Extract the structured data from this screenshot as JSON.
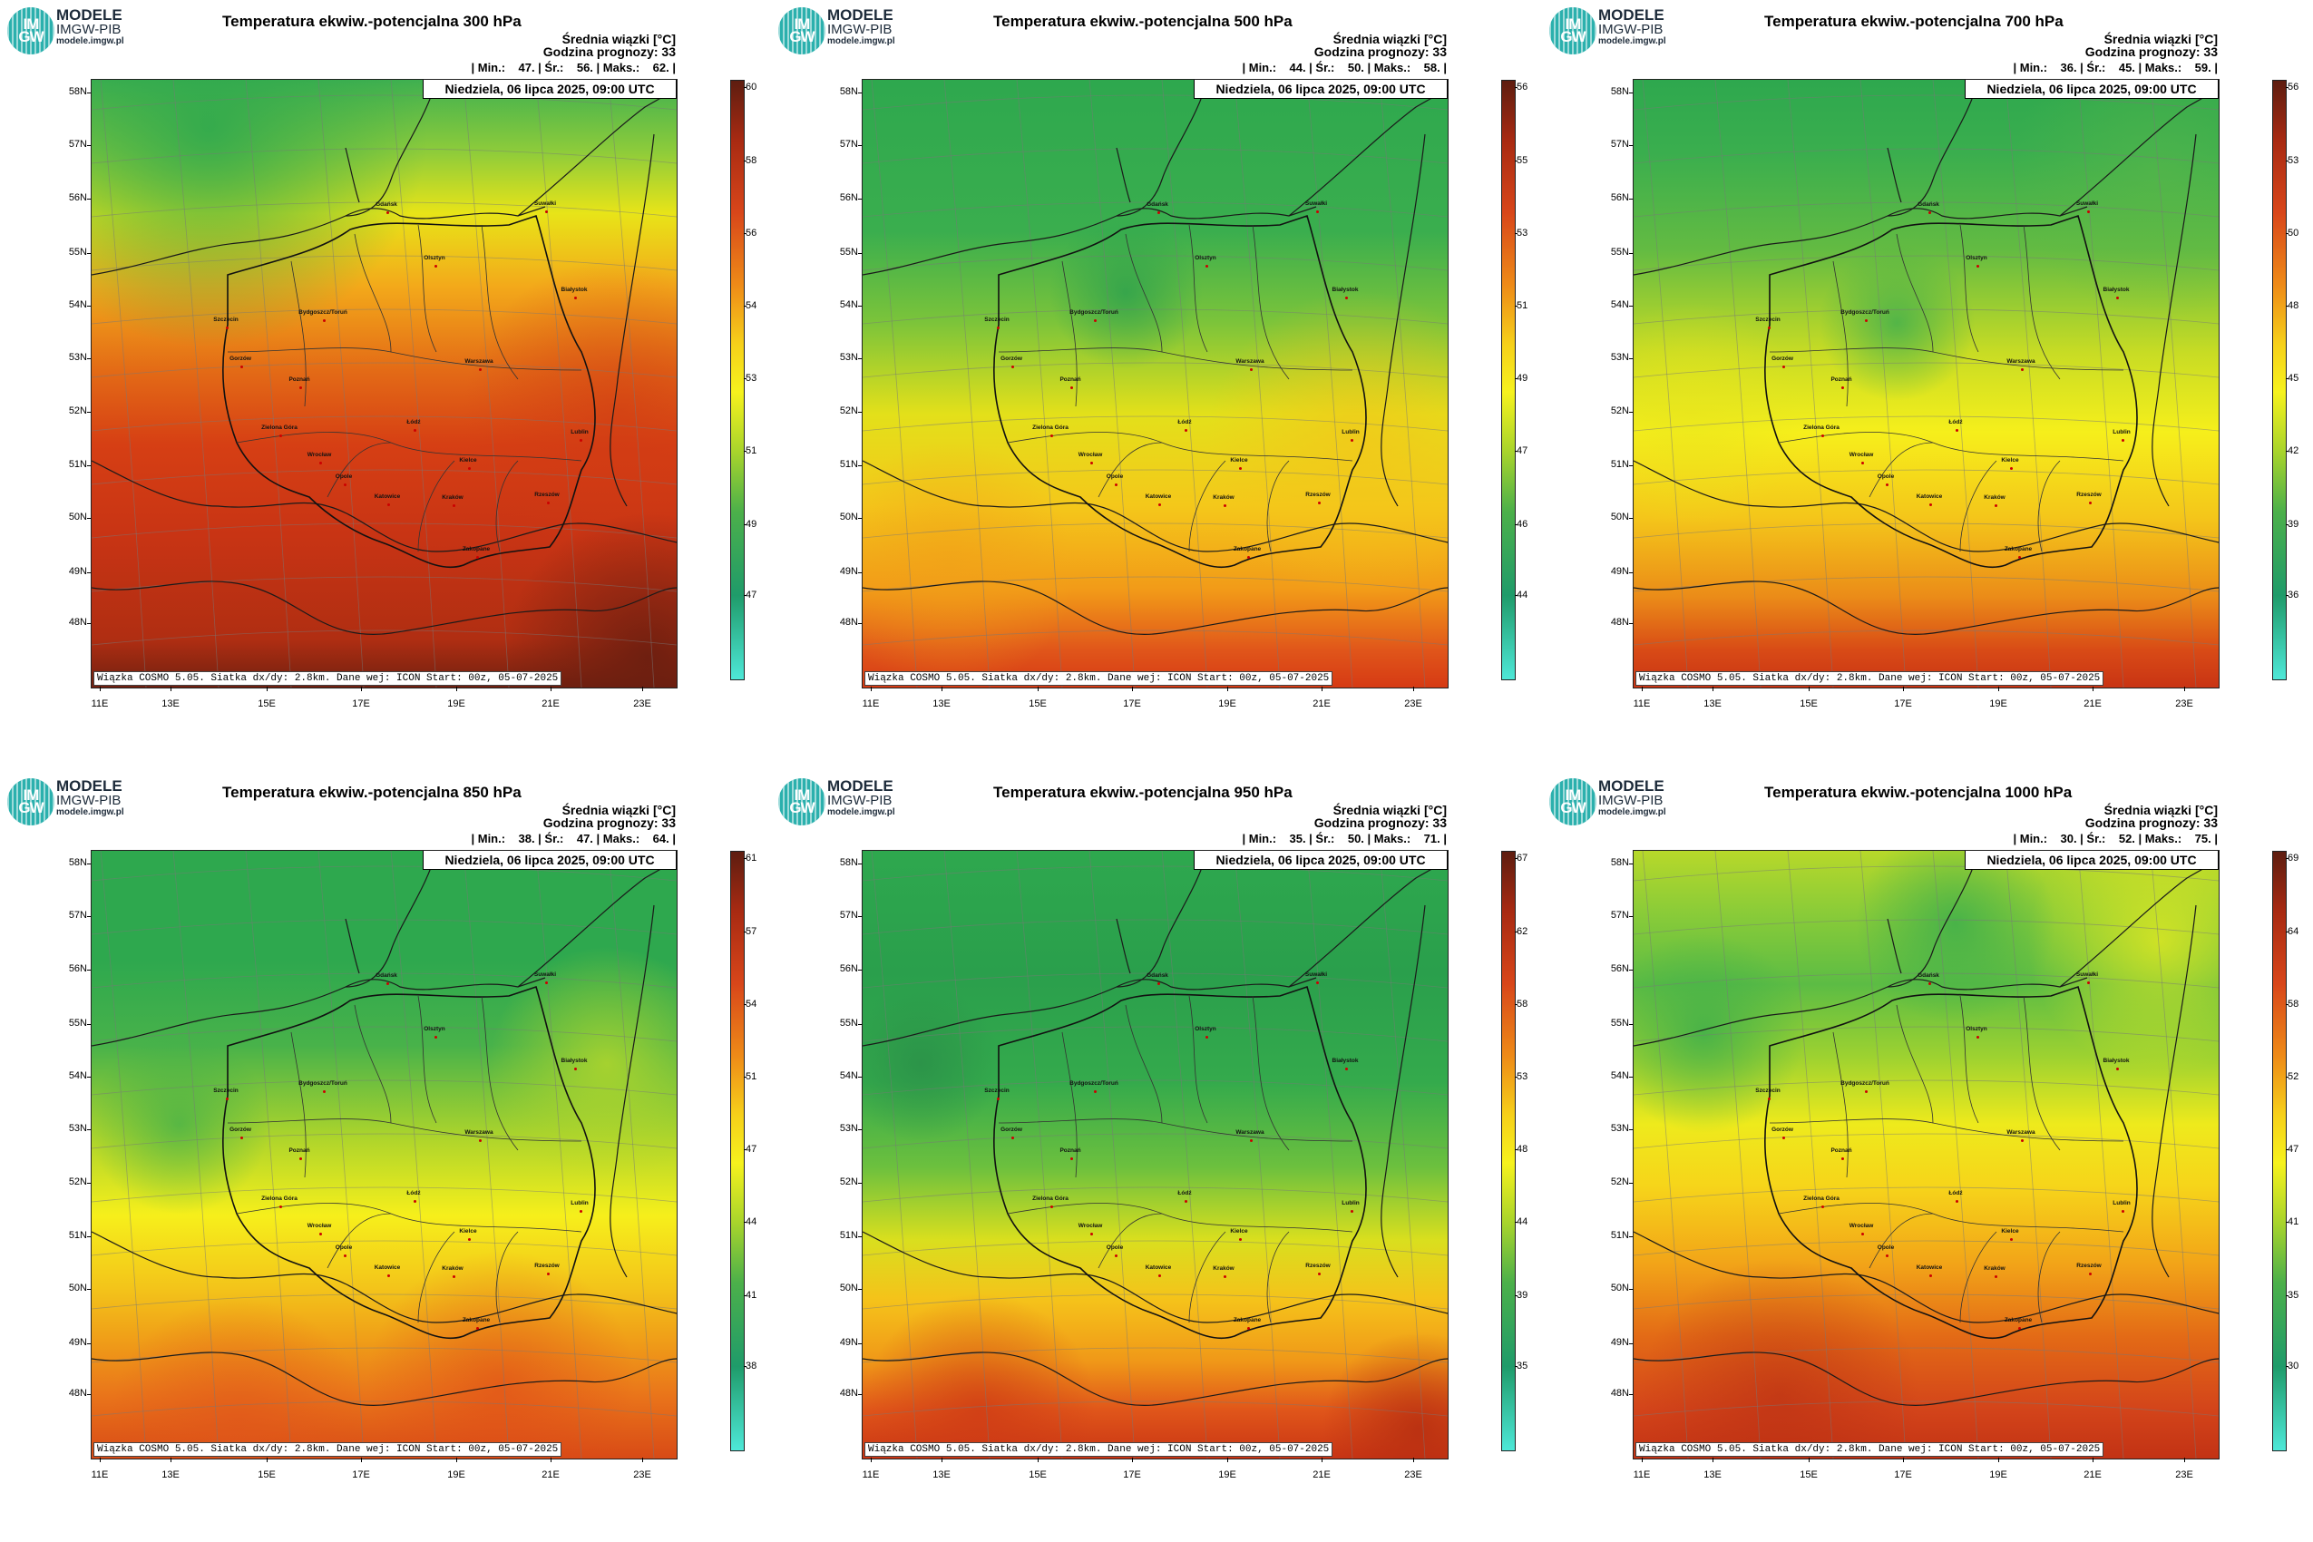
{
  "common": {
    "logo": {
      "icon_text": "IM\nGW",
      "name": "MODELE",
      "sub": "IMGW-PIB",
      "url": "modele.imgw.pl"
    },
    "info_line1": "Średnia wiązki [°C]",
    "info_line2": "Godzina prognozy: 33",
    "date": "Niedziela, 06 lipca 2025, 09:00 UTC",
    "footer": "Wiązka COSMO 5.05. Siatka dx/dy: 2.8km. Dane wej: ICON Start: 00z, 05-07-2025",
    "lat_labels": [
      "58N",
      "57N",
      "56N",
      "55N",
      "54N",
      "53N",
      "52N",
      "51N",
      "50N",
      "49N",
      "48N"
    ],
    "lon_labels": [
      "11E",
      "13E",
      "15E",
      "17E",
      "19E",
      "21E",
      "23E"
    ],
    "cities": [
      "Gdańsk",
      "Suwałki",
      "Olsztyn",
      "Szczecin",
      "Białystok",
      "Bydgoszcz/Toruń",
      "Gorzów",
      "Warszawa",
      "Poznań",
      "Zielona Góra",
      "Łódź",
      "Lublin",
      "Wrocław",
      "Kielce",
      "Opole",
      "Rzeszów",
      "Katowice",
      "Kraków",
      "Zakopane"
    ],
    "colors": {
      "teal": "#4ee8d8",
      "green": "#30b558",
      "yellow": "#f6f21d",
      "orange": "#f0a010",
      "red": "#d83a14",
      "darkred": "#5e1d10"
    }
  },
  "panels": [
    {
      "title": "Temperatura ekwiw.-potencjalna 300 hPa",
      "stats": "| Min.:    47. | Śr.:    56. | Maks.:    62. |",
      "scale": [
        "60",
        "58",
        "56",
        "54",
        "53",
        "51",
        "49",
        "47"
      ],
      "chart_data": {
        "type": "heatmap",
        "variable": "equivalent potential temperature",
        "level_hPa": 300,
        "min": 47,
        "mean": 56,
        "max": 62
      }
    },
    {
      "title": "Temperatura ekwiw.-potencjalna 500 hPa",
      "stats": "| Min.:    44. | Śr.:    50. | Maks.:    58. |",
      "scale": [
        "56",
        "55",
        "53",
        "51",
        "49",
        "47",
        "46",
        "44"
      ],
      "chart_data": {
        "type": "heatmap",
        "variable": "equivalent potential temperature",
        "level_hPa": 500,
        "min": 44,
        "mean": 50,
        "max": 58
      }
    },
    {
      "title": "Temperatura ekwiw.-potencjalna 700 hPa",
      "stats": "| Min.:    36. | Śr.:    45. | Maks.:    59. |",
      "scale": [
        "56",
        "53",
        "50",
        "48",
        "45",
        "42",
        "39",
        "36"
      ],
      "chart_data": {
        "type": "heatmap",
        "variable": "equivalent potential temperature",
        "level_hPa": 700,
        "min": 36,
        "mean": 45,
        "max": 59
      }
    },
    {
      "title": "Temperatura ekwiw.-potencjalna 850 hPa",
      "stats": "| Min.:    38. | Śr.:    47. | Maks.:    64. |",
      "scale": [
        "61",
        "57",
        "54",
        "51",
        "47",
        "44",
        "41",
        "38"
      ],
      "chart_data": {
        "type": "heatmap",
        "variable": "equivalent potential temperature",
        "level_hPa": 850,
        "min": 38,
        "mean": 47,
        "max": 64
      }
    },
    {
      "title": "Temperatura ekwiw.-potencjalna 950 hPa",
      "stats": "| Min.:    35. | Śr.:    50. | Maks.:    71. |",
      "scale": [
        "67",
        "62",
        "58",
        "53",
        "48",
        "44",
        "39",
        "35"
      ],
      "chart_data": {
        "type": "heatmap",
        "variable": "equivalent potential temperature",
        "level_hPa": 950,
        "min": 35,
        "mean": 50,
        "max": 71
      }
    },
    {
      "title": "Temperatura ekwiw.-potencjalna 1000 hPa",
      "stats": "| Min.:    30. | Śr.:    52. | Maks.:    75. |",
      "scale": [
        "69",
        "64",
        "58",
        "52",
        "47",
        "41",
        "35",
        "30"
      ],
      "chart_data": {
        "type": "heatmap",
        "variable": "equivalent potential temperature",
        "level_hPa": 1000,
        "min": 30,
        "mean": 52,
        "max": 75
      }
    }
  ]
}
